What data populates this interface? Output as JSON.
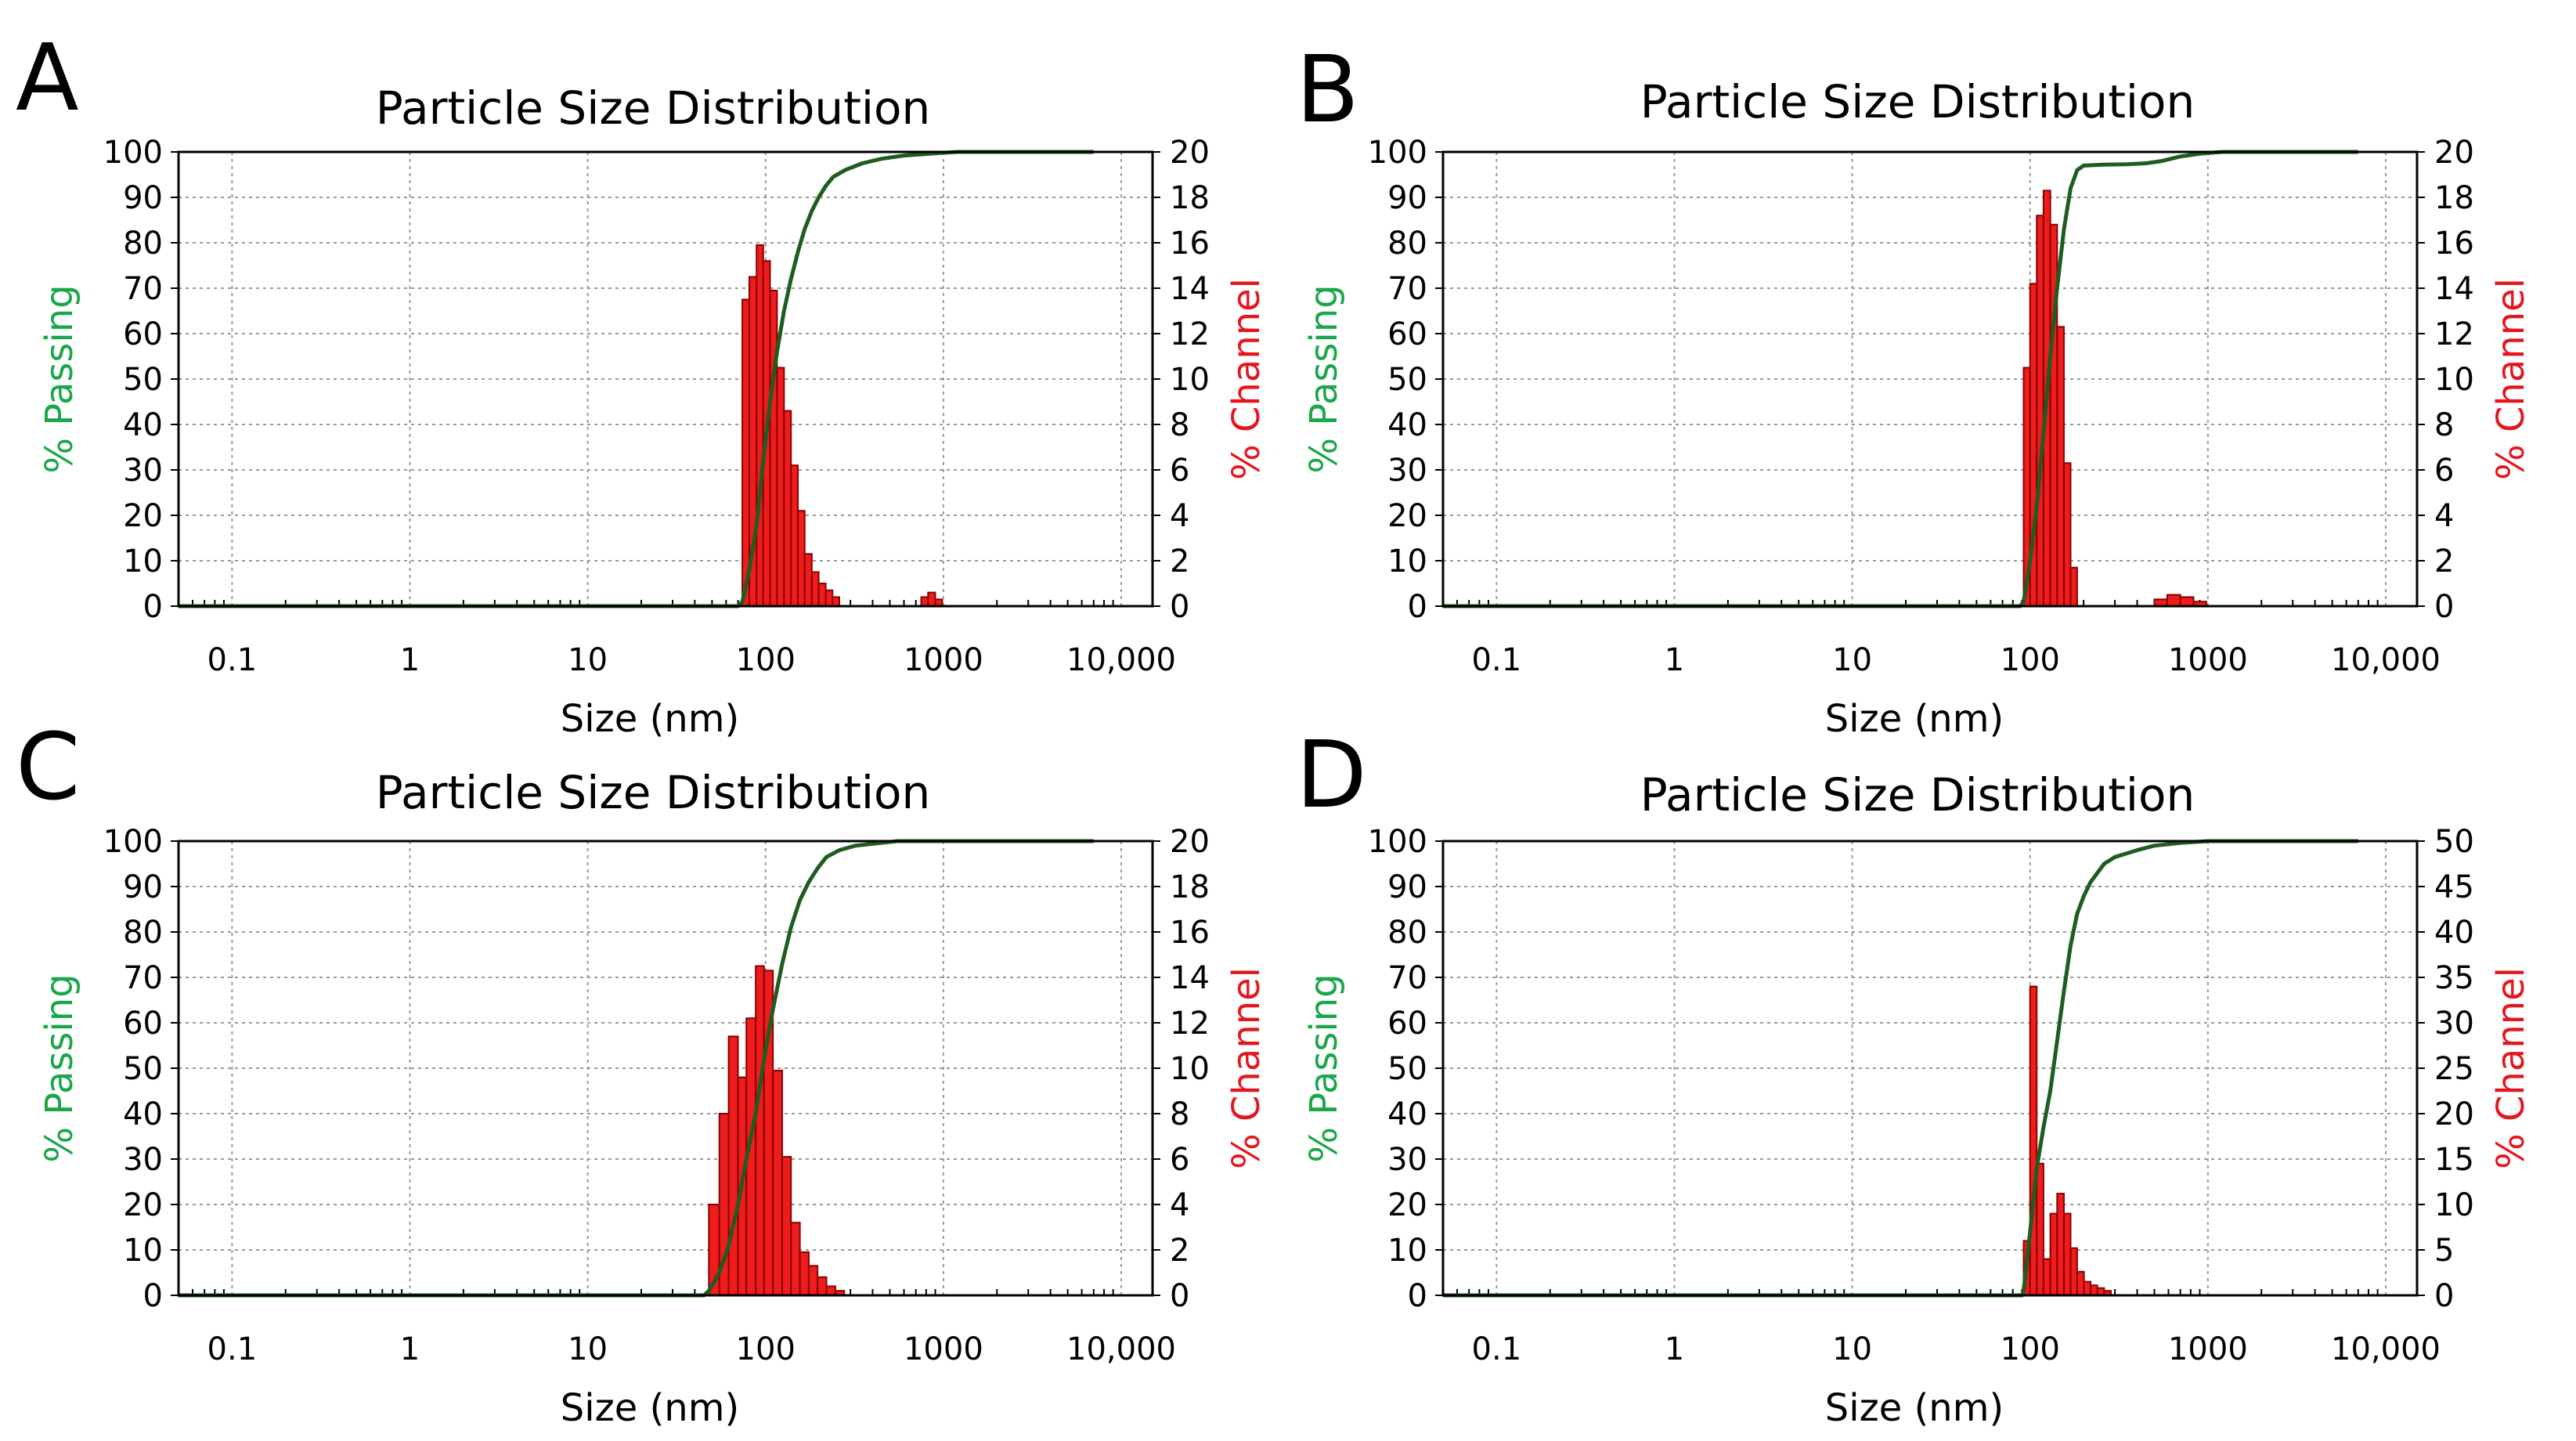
{
  "colors": {
    "bar_fill": "#ee1c1c",
    "bar_stroke": "#8a0000",
    "cumulative_line": "#1f5c1f",
    "left_label": "#1aa64a",
    "right_label": "#e4161e",
    "grid": "#9a9a9a"
  },
  "chart_data": [
    {
      "panel": "A",
      "type": "bar",
      "title": "Particle Size Distribution",
      "xlabel": "Size (nm)",
      "ylabel": "% Passing",
      "ylabel_right": "% Channel",
      "xscale": "log",
      "xlim": [
        0.05,
        15000
      ],
      "xticks": [
        0.1,
        1,
        10,
        100,
        1000,
        10000
      ],
      "xtick_labels": [
        "0.1",
        "1",
        "10",
        "100",
        "1000",
        "10,000"
      ],
      "ylim": [
        0,
        100
      ],
      "yticks": [
        0,
        10,
        20,
        30,
        40,
        50,
        60,
        70,
        80,
        90,
        100
      ],
      "ylim_right": [
        0,
        20
      ],
      "yticks_right": [
        0,
        2,
        4,
        6,
        8,
        10,
        12,
        14,
        16,
        18,
        20
      ],
      "grid": true,
      "channel_bars": [
        {
          "lo": 74,
          "hi": 81,
          "value": 13.5
        },
        {
          "lo": 81,
          "hi": 89,
          "value": 14.5
        },
        {
          "lo": 89,
          "hi": 97,
          "value": 15.9
        },
        {
          "lo": 97,
          "hi": 106,
          "value": 15.2
        },
        {
          "lo": 106,
          "hi": 116,
          "value": 13.9
        },
        {
          "lo": 116,
          "hi": 127,
          "value": 10.5
        },
        {
          "lo": 127,
          "hi": 139,
          "value": 8.6
        },
        {
          "lo": 139,
          "hi": 152,
          "value": 6.2
        },
        {
          "lo": 152,
          "hi": 166,
          "value": 4.2
        },
        {
          "lo": 166,
          "hi": 182,
          "value": 2.3
        },
        {
          "lo": 182,
          "hi": 199,
          "value": 1.5
        },
        {
          "lo": 199,
          "hi": 218,
          "value": 1.0
        },
        {
          "lo": 218,
          "hi": 238,
          "value": 0.7
        },
        {
          "lo": 238,
          "hi": 260,
          "value": 0.4
        },
        {
          "lo": 750,
          "hi": 820,
          "value": 0.4
        },
        {
          "lo": 820,
          "hi": 900,
          "value": 0.6
        },
        {
          "lo": 900,
          "hi": 985,
          "value": 0.3
        }
      ],
      "cumulative": {
        "x": [
          0.05,
          70,
          74,
          81,
          89,
          97,
          106,
          116,
          127,
          139,
          152,
          166,
          182,
          199,
          218,
          240,
          280,
          350,
          450,
          600,
          900,
          1200,
          2000,
          7000
        ],
        "y": [
          0,
          0,
          1,
          8,
          18,
          32,
          45,
          56,
          65,
          72,
          78,
          83,
          87,
          90,
          92.5,
          94.5,
          96,
          97.5,
          98.5,
          99.2,
          99.7,
          100,
          100,
          100
        ]
      }
    },
    {
      "panel": "B",
      "type": "bar",
      "title": "Particle Size Distribution",
      "xlabel": "Size (nm)",
      "ylabel": "% Passing",
      "ylabel_right": "% Channel",
      "xscale": "log",
      "xlim": [
        0.05,
        15000
      ],
      "xticks": [
        0.1,
        1,
        10,
        100,
        1000,
        10000
      ],
      "xtick_labels": [
        "0.1",
        "1",
        "10",
        "100",
        "1000",
        "10,000"
      ],
      "ylim": [
        0,
        100
      ],
      "yticks": [
        0,
        10,
        20,
        30,
        40,
        50,
        60,
        70,
        80,
        90,
        100
      ],
      "ylim_right": [
        0,
        20
      ],
      "yticks_right": [
        0,
        2,
        4,
        6,
        8,
        10,
        12,
        14,
        16,
        18,
        20
      ],
      "grid": true,
      "channel_bars": [
        {
          "lo": 92,
          "hi": 100,
          "value": 10.5
        },
        {
          "lo": 100,
          "hi": 109,
          "value": 14.2
        },
        {
          "lo": 109,
          "hi": 119,
          "value": 17.2
        },
        {
          "lo": 119,
          "hi": 130,
          "value": 18.3
        },
        {
          "lo": 130,
          "hi": 142,
          "value": 16.8
        },
        {
          "lo": 142,
          "hi": 155,
          "value": 12.3
        },
        {
          "lo": 155,
          "hi": 169,
          "value": 6.3
        },
        {
          "lo": 169,
          "hi": 184,
          "value": 1.7
        },
        {
          "lo": 500,
          "hi": 590,
          "value": 0.3
        },
        {
          "lo": 590,
          "hi": 700,
          "value": 0.5
        },
        {
          "lo": 700,
          "hi": 830,
          "value": 0.4
        },
        {
          "lo": 830,
          "hi": 980,
          "value": 0.2
        }
      ],
      "cumulative": {
        "x": [
          0.05,
          88,
          92,
          100,
          109,
          119,
          130,
          142,
          155,
          169,
          184,
          200,
          260,
          350,
          450,
          550,
          700,
          900,
          1200,
          7000
        ],
        "y": [
          0,
          0,
          1,
          10,
          22,
          38,
          55,
          70,
          83,
          92,
          96,
          97,
          97.2,
          97.3,
          97.5,
          98,
          99,
          99.6,
          100,
          100
        ]
      }
    },
    {
      "panel": "C",
      "type": "bar",
      "title": "Particle Size Distribution",
      "xlabel": "Size (nm)",
      "ylabel": "% Passing",
      "ylabel_right": "% Channel",
      "xscale": "log",
      "xlim": [
        0.05,
        15000
      ],
      "xticks": [
        0.1,
        1,
        10,
        100,
        1000,
        10000
      ],
      "xtick_labels": [
        "0.1",
        "1",
        "10",
        "100",
        "1000",
        "10,000"
      ],
      "ylim": [
        0,
        100
      ],
      "yticks": [
        0,
        10,
        20,
        30,
        40,
        50,
        60,
        70,
        80,
        90,
        100
      ],
      "ylim_right": [
        0,
        20
      ],
      "yticks_right": [
        0,
        2,
        4,
        6,
        8,
        10,
        12,
        14,
        16,
        18,
        20
      ],
      "grid": true,
      "channel_bars": [
        {
          "lo": 48,
          "hi": 55,
          "value": 4.0
        },
        {
          "lo": 55,
          "hi": 62,
          "value": 8.0
        },
        {
          "lo": 62,
          "hi": 70,
          "value": 11.4
        },
        {
          "lo": 70,
          "hi": 78,
          "value": 9.6
        },
        {
          "lo": 78,
          "hi": 88,
          "value": 12.2
        },
        {
          "lo": 88,
          "hi": 98,
          "value": 14.5
        },
        {
          "lo": 98,
          "hi": 110,
          "value": 14.3
        },
        {
          "lo": 110,
          "hi": 124,
          "value": 9.9
        },
        {
          "lo": 124,
          "hi": 139,
          "value": 6.1
        },
        {
          "lo": 139,
          "hi": 156,
          "value": 3.2
        },
        {
          "lo": 156,
          "hi": 175,
          "value": 1.9
        },
        {
          "lo": 175,
          "hi": 196,
          "value": 1.3
        },
        {
          "lo": 196,
          "hi": 220,
          "value": 0.8
        },
        {
          "lo": 220,
          "hi": 247,
          "value": 0.4
        },
        {
          "lo": 247,
          "hi": 277,
          "value": 0.2
        }
      ],
      "cumulative": {
        "x": [
          0.05,
          45,
          48,
          55,
          62,
          70,
          78,
          88,
          98,
          110,
          124,
          139,
          156,
          175,
          196,
          220,
          260,
          320,
          420,
          550,
          800,
          1500,
          7000
        ],
        "y": [
          0,
          0,
          1,
          5,
          11,
          20,
          30,
          40,
          52,
          63,
          73,
          81,
          87,
          91,
          94,
          96.5,
          98,
          99,
          99.5,
          100,
          100,
          100,
          100
        ]
      }
    },
    {
      "panel": "D",
      "type": "bar",
      "title": "Particle Size Distribution",
      "xlabel": "Size (nm)",
      "ylabel": "% Passing",
      "ylabel_right": "% Channel",
      "xscale": "log",
      "xlim": [
        0.05,
        15000
      ],
      "xticks": [
        0.1,
        1,
        10,
        100,
        1000,
        10000
      ],
      "xtick_labels": [
        "0.1",
        "1",
        "10",
        "100",
        "1000",
        "10,000"
      ],
      "ylim": [
        0,
        100
      ],
      "yticks": [
        0,
        10,
        20,
        30,
        40,
        50,
        60,
        70,
        80,
        90,
        100
      ],
      "ylim_right": [
        0,
        50
      ],
      "yticks_right": [
        0,
        5,
        10,
        15,
        20,
        25,
        30,
        35,
        40,
        45,
        50
      ],
      "grid": true,
      "channel_bars": [
        {
          "lo": 92,
          "hi": 100,
          "value": 6.0
        },
        {
          "lo": 100,
          "hi": 109,
          "value": 34.0
        },
        {
          "lo": 109,
          "hi": 119,
          "value": 14.5
        },
        {
          "lo": 119,
          "hi": 130,
          "value": 4.0
        },
        {
          "lo": 130,
          "hi": 142,
          "value": 9.0
        },
        {
          "lo": 142,
          "hi": 155,
          "value": 11.2
        },
        {
          "lo": 155,
          "hi": 169,
          "value": 9.0
        },
        {
          "lo": 169,
          "hi": 184,
          "value": 5.2
        },
        {
          "lo": 184,
          "hi": 201,
          "value": 2.6
        },
        {
          "lo": 201,
          "hi": 219,
          "value": 1.5
        },
        {
          "lo": 219,
          "hi": 239,
          "value": 1.1
        },
        {
          "lo": 239,
          "hi": 261,
          "value": 0.8
        },
        {
          "lo": 261,
          "hi": 285,
          "value": 0.5
        }
      ],
      "cumulative": {
        "x": [
          0.05,
          90,
          92,
          100,
          109,
          119,
          130,
          142,
          155,
          169,
          184,
          201,
          219,
          239,
          261,
          300,
          400,
          500,
          700,
          1000,
          2000,
          7000
        ],
        "y": [
          0,
          0,
          1,
          14,
          28,
          37,
          45,
          56,
          67,
          77,
          84,
          88,
          91,
          93,
          95,
          96.5,
          98,
          99,
          99.6,
          100,
          100,
          100
        ]
      }
    }
  ]
}
